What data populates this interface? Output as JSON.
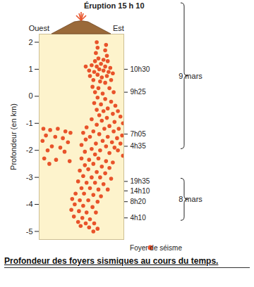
{
  "chart_data": {
    "type": "scatter",
    "title": "Profondeur des foyers sismiques au cours du temps.",
    "y_label": "Profondeur (en km)",
    "x_labels": {
      "left": "Ouest",
      "right": "Est"
    },
    "eruption": "Éruption 15 h 10",
    "xlim": [
      0,
      10
    ],
    "ylim": [
      -5.3,
      2.3
    ],
    "yticks": [
      2,
      1,
      0,
      -1,
      -2,
      -3,
      -4,
      -5
    ],
    "tick_labels": "y",
    "legend": "bottom right",
    "series": [
      {
        "name": "Foyer de séisme",
        "color": "#e8532a",
        "marker": "circle",
        "x": [
          6.8,
          7.9,
          6.9,
          7.8,
          6.7,
          8.0,
          7.0,
          7.6,
          6.6,
          8.1,
          5.5,
          6.2,
          6.8,
          7.3,
          7.8,
          8.4,
          5.9,
          6.5,
          7.1,
          7.6,
          8.2,
          8.7,
          6.0,
          6.9,
          7.4,
          8.0,
          6.4,
          7.2,
          8.5,
          7.8,
          6.3,
          7.0,
          8.3,
          6.6,
          7.5,
          8.8,
          6.9,
          7.8,
          8.5,
          6.5,
          7.3,
          9.0,
          8.1,
          6.8,
          7.6,
          9.3,
          8.7,
          7.1,
          9.6,
          8.0,
          6.2,
          7.4,
          8.9,
          9.9,
          6.8,
          8.3,
          5.6,
          7.7,
          9.4,
          6.4,
          8.8,
          5.2,
          7.1,
          9.8,
          6.0,
          8.1,
          9.2,
          5.5,
          7.5,
          8.6,
          6.7,
          9.6,
          5.0,
          7.9,
          8.9,
          6.2,
          7.2,
          9.3,
          5.4,
          8.3,
          6.6,
          9.9,
          0.5,
          1.3,
          2.2,
          3.1,
          3.7,
          0.8,
          1.9,
          2.8,
          0.4,
          3.4,
          1.5,
          2.5,
          1.0,
          3.0,
          0.6,
          2.0,
          3.6,
          1.2,
          5.0,
          5.9,
          7.0,
          7.9,
          8.7,
          5.4,
          6.4,
          7.4,
          8.3,
          4.8,
          5.8,
          6.8,
          7.8,
          5.2,
          6.2,
          7.2,
          8.5,
          4.6,
          5.6,
          6.6,
          7.6,
          5.0,
          6.0,
          7.0,
          8.1,
          4.3,
          5.3,
          6.4,
          7.3,
          3.9,
          4.8,
          5.8,
          6.9,
          4.2,
          5.2,
          6.3,
          3.8,
          4.7,
          5.6,
          6.7,
          4.1,
          5.1,
          6.0,
          4.6,
          5.5,
          6.5,
          4.9,
          5.9,
          6.9,
          6.4
        ],
        "values": [
          2.0,
          1.9,
          1.8,
          1.7,
          1.6,
          1.5,
          1.4,
          1.35,
          1.3,
          1.3,
          1.1,
          1.15,
          1.1,
          1.2,
          1.1,
          1.05,
          0.95,
          0.9,
          1.0,
          0.95,
          0.9,
          0.85,
          0.75,
          0.8,
          0.7,
          0.75,
          0.6,
          0.55,
          0.6,
          0.5,
          0.35,
          0.3,
          0.3,
          0.15,
          0.1,
          0.15,
          -0.05,
          -0.1,
          -0.2,
          -0.25,
          -0.3,
          -0.35,
          -0.45,
          -0.5,
          -0.55,
          -0.55,
          -0.65,
          -0.7,
          -0.75,
          -0.8,
          -0.85,
          -0.9,
          -0.95,
          -1.0,
          -1.05,
          -1.1,
          -1.15,
          -1.2,
          -1.2,
          -1.3,
          -1.3,
          -1.35,
          -1.4,
          -1.45,
          -1.5,
          -1.5,
          -1.55,
          -1.6,
          -1.65,
          -1.7,
          -1.75,
          -1.75,
          -1.8,
          -1.85,
          -1.9,
          -1.95,
          -2.0,
          -2.0,
          -2.05,
          -2.1,
          -2.15,
          -2.2,
          -1.2,
          -1.25,
          -1.2,
          -1.3,
          -1.35,
          -1.45,
          -1.5,
          -1.55,
          -1.65,
          -1.7,
          -1.85,
          -1.9,
          -2.0,
          -2.05,
          -2.3,
          -2.35,
          -2.4,
          -2.5,
          -2.3,
          -2.35,
          -2.3,
          -2.4,
          -2.45,
          -2.55,
          -2.5,
          -2.6,
          -2.65,
          -2.75,
          -2.7,
          -2.8,
          -2.85,
          -2.95,
          -3.0,
          -3.0,
          -3.05,
          -3.15,
          -3.2,
          -3.2,
          -3.25,
          -3.4,
          -3.4,
          -3.45,
          -3.45,
          -3.6,
          -3.6,
          -3.65,
          -3.7,
          -3.8,
          -3.85,
          -3.85,
          -3.9,
          -4.0,
          -4.05,
          -4.1,
          -4.2,
          -4.25,
          -4.3,
          -4.3,
          -4.45,
          -4.5,
          -4.55,
          -4.65,
          -4.7,
          -4.7,
          -4.8,
          -4.85,
          -4.9,
          -5.0
        ]
      }
    ],
    "time_markers": [
      {
        "value": 1.0,
        "label": "10h30"
      },
      {
        "value": 0.15,
        "label": "9h25"
      },
      {
        "value": -1.4,
        "label": "7h05"
      },
      {
        "value": -1.85,
        "label": "4h35"
      },
      {
        "value": -3.15,
        "label": "19h35"
      },
      {
        "value": -3.5,
        "label": "14h10"
      },
      {
        "value": -3.9,
        "label": "8h20"
      },
      {
        "value": -4.5,
        "label": "4h10"
      }
    ],
    "date_groups": [
      {
        "label": "9 mars",
        "markers": [
          "10h30",
          "9h25",
          "7h05",
          "4h35"
        ]
      },
      {
        "label": "8 mars",
        "markers": [
          "19h35",
          "14h10",
          "8h20",
          "4h10"
        ]
      }
    ]
  }
}
